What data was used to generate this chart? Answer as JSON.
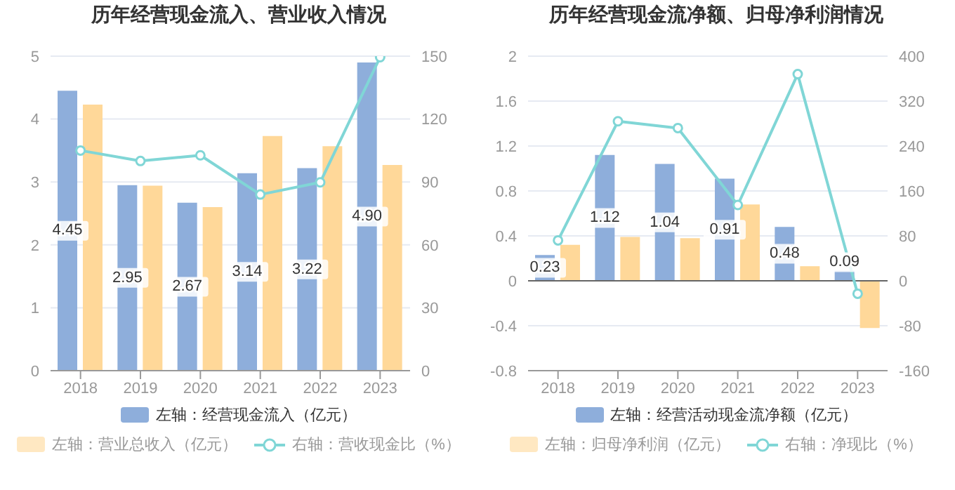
{
  "chart_data": [
    {
      "type": "bar",
      "title": "历年经营现金流入、营业收入情况",
      "categories": [
        "2018",
        "2019",
        "2020",
        "2021",
        "2022",
        "2023"
      ],
      "series": [
        {
          "name": "左轴：经营现金流入（亿元）",
          "color": "#8eaedb",
          "values": [
            4.45,
            2.95,
            2.67,
            3.14,
            3.22,
            4.9
          ],
          "value_labels": [
            "4.45",
            "2.95",
            "2.67",
            "3.14",
            "3.22",
            "4.90"
          ]
        },
        {
          "name": "左轴：营业总收入（亿元）",
          "color": "#ffd899",
          "values": [
            4.23,
            2.94,
            2.6,
            3.73,
            3.57,
            3.27
          ]
        },
        {
          "name": "右轴：营收现金比（%）",
          "type": "line",
          "axis": "y2",
          "color": "#80d6d6",
          "values": [
            105,
            100,
            102.7,
            84,
            89.8,
            149.5
          ]
        }
      ],
      "ylim": [
        0,
        5
      ],
      "yticks": [
        0,
        1,
        2,
        3,
        4,
        5
      ],
      "y2lim": [
        0,
        150
      ],
      "y2ticks": [
        0,
        30,
        60,
        90,
        120,
        150
      ],
      "grid": "y",
      "legend": "bottom",
      "marker": "circle",
      "line_style": "solid"
    },
    {
      "type": "bar",
      "title": "历年经营现金流净额、归母净利润情况",
      "categories": [
        "2018",
        "2019",
        "2020",
        "2021",
        "2022",
        "2023"
      ],
      "series": [
        {
          "name": "左轴：经营活动现金流净额（亿元）",
          "color": "#8eaedb",
          "values": [
            0.23,
            1.12,
            1.04,
            0.91,
            0.48,
            0.09
          ],
          "value_labels": [
            "0.23",
            "1.12",
            "1.04",
            "0.91",
            "0.48",
            "0.09"
          ]
        },
        {
          "name": "左轴：归母净利润（亿元）",
          "color": "#ffd899",
          "values": [
            0.32,
            0.39,
            0.38,
            0.68,
            0.13,
            -0.42
          ]
        },
        {
          "name": "右轴：净现比（%）",
          "type": "line",
          "axis": "y2",
          "color": "#80d6d6",
          "values": [
            72,
            284,
            272,
            135,
            368,
            -23
          ]
        }
      ],
      "ylim": [
        -0.8,
        2
      ],
      "yticks": [
        -0.8,
        -0.4,
        0,
        0.4,
        0.8,
        1.2,
        1.6,
        2
      ],
      "y2lim": [
        -160,
        400
      ],
      "y2ticks": [
        -160,
        -80,
        0,
        80,
        160,
        240,
        320,
        400
      ],
      "grid": "y",
      "legend": "bottom",
      "marker": "circle",
      "line_style": "solid"
    }
  ]
}
